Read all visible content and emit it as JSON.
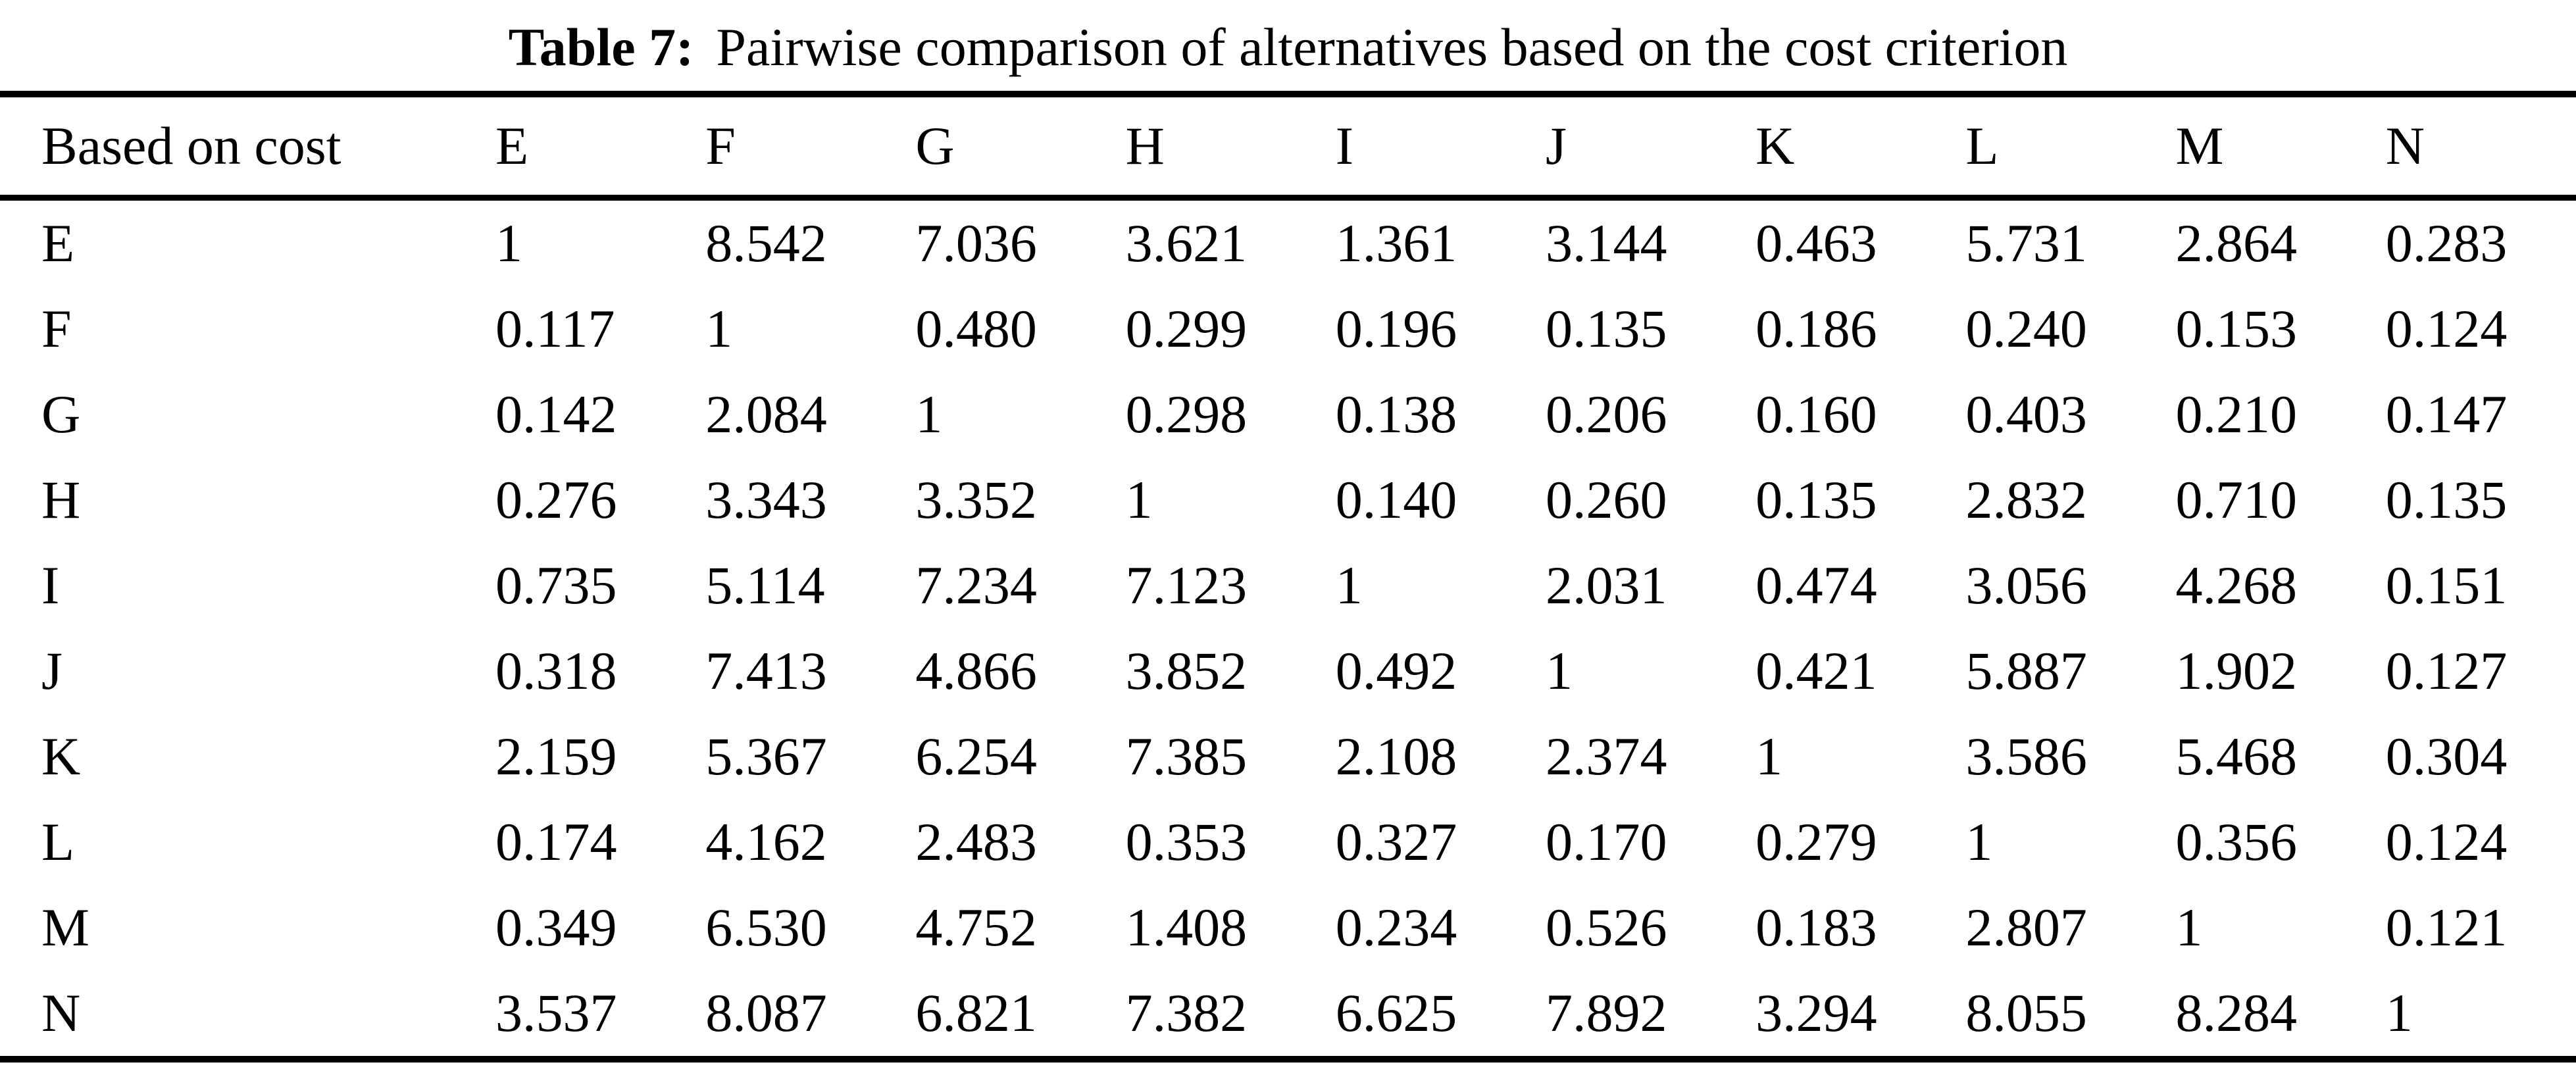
{
  "caption": {
    "label": "Table 7:",
    "text": "Pairwise comparison of alternatives based on the cost criterion"
  },
  "table": {
    "columns": [
      "Based on cost",
      "E",
      "F",
      "G",
      "H",
      "I",
      "J",
      "K",
      "L",
      "M",
      "N"
    ],
    "rows": [
      {
        "label": "E",
        "values": [
          "1",
          "8.542",
          "7.036",
          "3.621",
          "1.361",
          "3.144",
          "0.463",
          "5.731",
          "2.864",
          "0.283"
        ]
      },
      {
        "label": "F",
        "values": [
          "0.117",
          "1",
          "0.480",
          "0.299",
          "0.196",
          "0.135",
          "0.186",
          "0.240",
          "0.153",
          "0.124"
        ]
      },
      {
        "label": "G",
        "values": [
          "0.142",
          "2.084",
          "1",
          "0.298",
          "0.138",
          "0.206",
          "0.160",
          "0.403",
          "0.210",
          "0.147"
        ]
      },
      {
        "label": "H",
        "values": [
          "0.276",
          "3.343",
          "3.352",
          "1",
          "0.140",
          "0.260",
          "0.135",
          "2.832",
          "0.710",
          "0.135"
        ]
      },
      {
        "label": "I",
        "values": [
          "0.735",
          "5.114",
          "7.234",
          "7.123",
          "1",
          "2.031",
          "0.474",
          "3.056",
          "4.268",
          "0.151"
        ]
      },
      {
        "label": "J",
        "values": [
          "0.318",
          "7.413",
          "4.866",
          "3.852",
          "0.492",
          "1",
          "0.421",
          "5.887",
          "1.902",
          "0.127"
        ]
      },
      {
        "label": "K",
        "values": [
          "2.159",
          "5.367",
          "6.254",
          "7.385",
          "2.108",
          "2.374",
          "1",
          "3.586",
          "5.468",
          "0.304"
        ]
      },
      {
        "label": "L",
        "values": [
          "0.174",
          "4.162",
          "2.483",
          "0.353",
          "0.327",
          "0.170",
          "0.279",
          "1",
          "0.356",
          "0.124"
        ]
      },
      {
        "label": "M",
        "values": [
          "0.349",
          "6.530",
          "4.752",
          "1.408",
          "0.234",
          "0.526",
          "0.183",
          "2.807",
          "1",
          "0.121"
        ]
      },
      {
        "label": "N",
        "values": [
          "3.537",
          "8.087",
          "6.821",
          "7.382",
          "6.625",
          "7.892",
          "3.294",
          "8.055",
          "8.284",
          "1"
        ]
      }
    ]
  },
  "chart_data": {
    "type": "table",
    "title": "Table 7: Pairwise comparison of alternatives based on the cost criterion",
    "columns": [
      "Based on cost",
      "E",
      "F",
      "G",
      "H",
      "I",
      "J",
      "K",
      "L",
      "M",
      "N"
    ],
    "rows": [
      [
        "E",
        1,
        8.542,
        7.036,
        3.621,
        1.361,
        3.144,
        0.463,
        5.731,
        2.864,
        0.283
      ],
      [
        "F",
        0.117,
        1,
        0.48,
        0.299,
        0.196,
        0.135,
        0.186,
        0.24,
        0.153,
        0.124
      ],
      [
        "G",
        0.142,
        2.084,
        1,
        0.298,
        0.138,
        0.206,
        0.16,
        0.403,
        0.21,
        0.147
      ],
      [
        "H",
        0.276,
        3.343,
        3.352,
        1,
        0.14,
        0.26,
        0.135,
        2.832,
        0.71,
        0.135
      ],
      [
        "I",
        0.735,
        5.114,
        7.234,
        7.123,
        1,
        2.031,
        0.474,
        3.056,
        4.268,
        0.151
      ],
      [
        "J",
        0.318,
        7.413,
        4.866,
        3.852,
        0.492,
        1,
        0.421,
        5.887,
        1.902,
        0.127
      ],
      [
        "K",
        2.159,
        5.367,
        6.254,
        7.385,
        2.108,
        2.374,
        1,
        3.586,
        5.468,
        0.304
      ],
      [
        "L",
        0.174,
        4.162,
        2.483,
        0.353,
        0.327,
        0.17,
        0.279,
        1,
        0.356,
        0.124
      ],
      [
        "M",
        0.349,
        6.53,
        4.752,
        1.408,
        0.234,
        0.526,
        0.183,
        2.807,
        1,
        0.121
      ],
      [
        "N",
        3.537,
        8.087,
        6.821,
        7.382,
        6.625,
        7.892,
        3.294,
        8.055,
        8.284,
        1
      ]
    ]
  }
}
